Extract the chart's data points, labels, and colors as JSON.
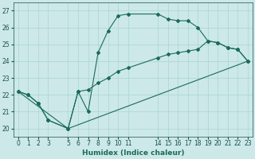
{
  "xlabel": "Humidex (Indice chaleur)",
  "bg_color": "#cce8e8",
  "grid_color": "#aad4d4",
  "line_color": "#1a6b5a",
  "xlim": [
    -0.5,
    23.5
  ],
  "ylim": [
    19.5,
    27.5
  ],
  "xticks": [
    0,
    1,
    2,
    3,
    5,
    6,
    7,
    8,
    9,
    10,
    11,
    14,
    15,
    16,
    17,
    18,
    19,
    20,
    21,
    22,
    23
  ],
  "yticks": [
    20,
    21,
    22,
    23,
    24,
    25,
    26,
    27
  ],
  "curve1_x": [
    0,
    1,
    2,
    3,
    5,
    6,
    7,
    8,
    9,
    10,
    11,
    14,
    15,
    16,
    17,
    18,
    19,
    20,
    21,
    22,
    23
  ],
  "curve1_y": [
    22.2,
    22.0,
    21.5,
    20.5,
    20.0,
    22.2,
    21.0,
    24.5,
    25.8,
    26.7,
    26.8,
    26.8,
    26.5,
    26.4,
    26.4,
    26.0,
    25.2,
    25.1,
    24.8,
    24.7,
    24.0
  ],
  "curve2_x": [
    0,
    1,
    2,
    3,
    5,
    6,
    7,
    8,
    9,
    10,
    11,
    14,
    15,
    16,
    17,
    18,
    19,
    20,
    21,
    22,
    23
  ],
  "curve2_y": [
    22.2,
    22.0,
    21.5,
    20.5,
    20.0,
    22.2,
    22.3,
    22.7,
    23.0,
    23.4,
    23.6,
    24.2,
    24.4,
    24.5,
    24.6,
    24.7,
    25.2,
    25.1,
    24.8,
    24.7,
    24.0
  ],
  "curve3_x": [
    0,
    5,
    23
  ],
  "curve3_y": [
    22.2,
    20.0,
    24.0
  ]
}
